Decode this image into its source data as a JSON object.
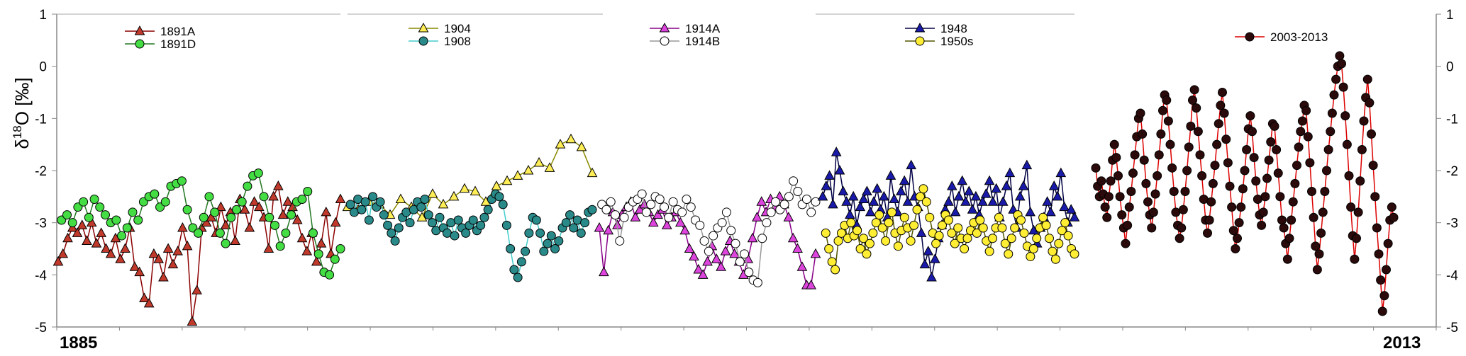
{
  "chart_data": {
    "type": "line",
    "ylabel": {
      "delta": "δ",
      "sup": "18",
      "rest": "O [‰]"
    },
    "ylim": [
      -5,
      1
    ],
    "yticks": [
      "1",
      "0",
      "-1",
      "-2",
      "-3",
      "-4",
      "-5"
    ],
    "xlabel_left": "1885",
    "xlabel_right": "2013",
    "grid": false,
    "series": [
      {
        "name": "1891A",
        "marker": "triangle",
        "fill": "#c0392b",
        "line": "#8b0000",
        "segment": 0,
        "values": [
          -3.75,
          -3.6,
          -3.3,
          -3.1,
          -3.2,
          -3.05,
          -3.35,
          -3.0,
          -3.4,
          -3.2,
          -3.5,
          -3.6,
          -3.3,
          -3.7,
          -3.5,
          -3.1,
          -3.85,
          -3.95,
          -4.45,
          -4.55,
          -3.6,
          -3.7,
          -4.05,
          -3.5,
          -3.8,
          -3.55,
          -3.1,
          -3.45,
          -4.9,
          -4.3,
          -3.1,
          -3.0,
          -2.9,
          -3.2,
          -2.7,
          -3.05,
          -2.8,
          -3.35,
          -2.55,
          -2.75,
          -3.1,
          -2.6,
          -2.7,
          -2.9,
          -3.5,
          -2.5,
          -2.3,
          -2.85,
          -2.6,
          -2.7,
          -2.95,
          -3.3,
          -3.55,
          -3.2,
          -3.75,
          -3.4,
          -2.8,
          -3.6,
          -3.0,
          -2.55
        ]
      },
      {
        "name": "1891D",
        "marker": "circle",
        "fill": "#44dd44",
        "line": "#227722",
        "segment": 0,
        "values": [
          -2.95,
          -2.85,
          -3.0,
          -2.7,
          -2.6,
          -2.9,
          -2.55,
          -2.7,
          -2.85,
          -3.0,
          -2.95,
          -3.25,
          -3.1,
          -2.8,
          -2.95,
          -2.6,
          -2.5,
          -2.45,
          -2.7,
          -2.6,
          -2.3,
          -2.25,
          -2.2,
          -2.75,
          -3.1,
          -3.2,
          -2.9,
          -2.5,
          -2.8,
          -3.2,
          -3.4,
          -2.9,
          -2.75,
          -2.6,
          -2.3,
          -2.1,
          -2.05,
          -2.5,
          -2.9,
          -3.05,
          -3.45,
          -3.2,
          -2.85,
          -2.6,
          -2.55,
          -2.4,
          -3.2,
          -3.6,
          -3.95,
          -4.0,
          -3.7,
          -3.5
        ]
      },
      {
        "name": "1904",
        "marker": "triangle",
        "fill": "#ffee55",
        "line": "#888800",
        "segment": 1,
        "values": [
          -2.7,
          -2.75,
          -2.6,
          -2.65,
          -2.85,
          -2.55,
          -2.7,
          -2.9,
          -2.45,
          -2.65,
          -2.5,
          -2.35,
          -2.4,
          -2.6,
          -2.3,
          -2.2,
          -2.1,
          -2.0,
          -1.85,
          -1.95,
          -1.5,
          -1.4,
          -1.55,
          -2.05
        ]
      },
      {
        "name": "1908",
        "marker": "circle",
        "fill": "#2a8a8a",
        "line": "#44cccc",
        "segment": 1,
        "values": [
          -2.65,
          -2.8,
          -2.55,
          -2.75,
          -2.6,
          -2.95,
          -2.5,
          -2.7,
          -2.6,
          -2.85,
          -3.05,
          -3.2,
          -3.35,
          -3.1,
          -2.9,
          -2.8,
          -3.0,
          -2.75,
          -2.6,
          -2.7,
          -2.55,
          -2.85,
          -3.0,
          -3.15,
          -2.9,
          -3.1,
          -3.2,
          -3.0,
          -3.25,
          -2.95,
          -3.1,
          -3.2,
          -3.05,
          -2.95,
          -3.15,
          -3.05,
          -2.9,
          -2.75,
          -2.55,
          -2.45,
          -2.5,
          -2.65,
          -3.05,
          -3.5,
          -3.9,
          -4.05,
          -3.75,
          -3.55,
          -3.2,
          -2.9,
          -2.95,
          -3.2,
          -3.55,
          -3.4,
          -3.25,
          -3.5,
          -3.35,
          -3.1,
          -3.0,
          -2.85,
          -3.1,
          -2.95,
          -3.2,
          -3.0,
          -2.8,
          -2.75
        ]
      },
      {
        "name": "1914A",
        "marker": "triangle",
        "fill": "#dd44dd",
        "line": "#880088",
        "segment": 2,
        "values": [
          -3.1,
          -3.95,
          -3.15,
          -2.8,
          -3.05,
          -2.85,
          -2.7,
          -2.6,
          -2.9,
          -2.75,
          -2.65,
          -2.8,
          -3.0,
          -2.85,
          -2.75,
          -3.05,
          -2.9,
          -2.8,
          -3.0,
          -3.15,
          -3.5,
          -3.65,
          -3.9,
          -4.0,
          -3.75,
          -3.45,
          -3.7,
          -3.85,
          -3.55,
          -3.35,
          -3.6,
          -3.75,
          -4.0,
          -3.7,
          -3.3,
          -2.9,
          -2.6,
          -2.8,
          -2.55,
          -2.7,
          -2.5,
          -2.65,
          -2.9,
          -3.3,
          -3.5,
          -3.85,
          -4.2,
          -4.2,
          -3.6
        ]
      },
      {
        "name": "1914B",
        "marker": "circle",
        "fill": "#ffffff",
        "line": "#999999",
        "segment": 2,
        "values": [
          -2.65,
          -2.75,
          -2.6,
          -2.85,
          -3.35,
          -2.9,
          -2.7,
          -2.6,
          -2.55,
          -2.45,
          -2.8,
          -2.65,
          -2.5,
          -2.55,
          -2.7,
          -2.9,
          -2.6,
          -2.75,
          -2.8,
          -2.55,
          -2.7,
          -2.95,
          -3.05,
          -3.35,
          -3.55,
          -3.25,
          -3.1,
          -3.0,
          -2.8,
          -3.15,
          -3.4,
          -3.75,
          -3.6,
          -3.95,
          -4.1,
          -4.15,
          -3.3,
          -3.0,
          -2.8,
          -2.6,
          -2.75,
          -2.65,
          -2.5,
          -2.2,
          -2.4,
          -2.65,
          -2.55,
          -2.8,
          -2.6
        ]
      },
      {
        "name": "1948",
        "marker": "triangle",
        "fill": "#1a1aaa",
        "line": "#000044",
        "segment": 3,
        "values": [
          -2.5,
          -2.3,
          -2.1,
          -2.65,
          -1.65,
          -2.0,
          -2.4,
          -2.6,
          -2.85,
          -2.5,
          -3.05,
          -2.7,
          -2.55,
          -2.4,
          -2.8,
          -2.6,
          -2.35,
          -2.75,
          -2.5,
          -2.9,
          -2.1,
          -2.55,
          -2.8,
          -2.4,
          -2.2,
          -2.6,
          -1.9,
          -2.5,
          -2.7,
          -3.2,
          -3.8,
          -3.55,
          -4.05,
          -3.7,
          -3.3,
          -3.05,
          -2.75,
          -2.6,
          -2.3,
          -2.8,
          -2.5,
          -2.2,
          -2.6,
          -2.4,
          -2.75,
          -2.5,
          -2.85,
          -2.6,
          -2.45,
          -2.2,
          -2.6,
          -2.35,
          -2.9,
          -2.6,
          -2.3,
          -2.05,
          -2.75,
          -3.1,
          -2.5,
          -2.3,
          -1.9,
          -2.8,
          -3.15,
          -3.4,
          -3.1,
          -2.9,
          -2.6,
          -2.8,
          -2.3,
          -2.5,
          -2.05,
          -2.7,
          -3.0,
          -2.75,
          -2.9
        ]
      },
      {
        "name": "1950s",
        "marker": "circle",
        "fill": "#ffee33",
        "line": "#555500",
        "segment": 3,
        "values": [
          -3.2,
          -3.5,
          -3.75,
          -3.9,
          -3.35,
          -3.2,
          -3.05,
          -3.3,
          -3.0,
          -3.25,
          -3.15,
          -3.5,
          -3.3,
          -3.6,
          -3.4,
          -3.2,
          -3.0,
          -2.85,
          -3.1,
          -3.35,
          -3.0,
          -2.8,
          -3.2,
          -3.45,
          -3.15,
          -2.9,
          -3.1,
          -3.35,
          -3.05,
          -2.75,
          -2.5,
          -2.35,
          -2.6,
          -2.9,
          -3.2,
          -3.4,
          -3.25,
          -3.05,
          -2.85,
          -2.95,
          -3.2,
          -3.4,
          -3.1,
          -3.3,
          -3.5,
          -3.3,
          -3.15,
          -3.0,
          -3.2,
          -2.95,
          -3.1,
          -3.35,
          -3.55,
          -3.3,
          -3.1,
          -2.9,
          -3.1,
          -3.4,
          -3.6,
          -3.3,
          -3.1,
          -2.85,
          -2.95,
          -3.2,
          -3.45,
          -3.65,
          -3.5,
          -3.3,
          -3.1,
          -2.9,
          -3.05,
          -3.3,
          -3.55,
          -3.7,
          -3.4,
          -3.15,
          -3.0,
          -3.25,
          -3.5,
          -3.6
        ]
      },
      {
        "name": "2003-2013",
        "marker": "circle",
        "fill": "#2a0a0a",
        "line": "#dd0000",
        "segment": 4,
        "values": [
          -1.95,
          -2.3,
          -2.5,
          -2.2,
          -2.45,
          -2.7,
          -2.9,
          -2.5,
          -2.2,
          -1.8,
          -1.5,
          -1.75,
          -2.1,
          -2.5,
          -2.85,
          -3.1,
          -3.4,
          -3.05,
          -2.7,
          -2.4,
          -2.05,
          -1.7,
          -1.35,
          -1.0,
          -0.9,
          -1.3,
          -1.8,
          -2.25,
          -2.6,
          -2.85,
          -3.1,
          -2.8,
          -2.45,
          -2.1,
          -1.7,
          -1.3,
          -0.85,
          -0.55,
          -0.65,
          -1.05,
          -1.5,
          -1.95,
          -2.4,
          -2.8,
          -3.05,
          -3.3,
          -3.1,
          -2.75,
          -2.4,
          -2.0,
          -1.55,
          -1.15,
          -0.65,
          -0.45,
          -0.8,
          -1.25,
          -1.7,
          -2.1,
          -2.55,
          -2.95,
          -3.2,
          -2.95,
          -2.6,
          -2.25,
          -1.9,
          -1.5,
          -1.1,
          -0.75,
          -0.5,
          -0.9,
          -1.4,
          -1.85,
          -2.3,
          -2.7,
          -3.15,
          -3.5,
          -3.3,
          -3.0,
          -2.7,
          -2.35,
          -2.0,
          -1.6,
          -1.2,
          -0.95,
          -1.25,
          -1.75,
          -2.2,
          -2.55,
          -2.85,
          -3.05,
          -2.8,
          -2.5,
          -2.15,
          -1.8,
          -1.45,
          -1.1,
          -1.15,
          -1.6,
          -2.05,
          -2.5,
          -2.95,
          -3.1,
          -3.4,
          -3.7,
          -3.3,
          -2.95,
          -2.6,
          -2.25,
          -1.9,
          -1.55,
          -1.25,
          -1.05,
          -0.75,
          -0.85,
          -1.35,
          -1.85,
          -2.4,
          -2.9,
          -3.45,
          -3.9,
          -3.6,
          -3.2,
          -2.8,
          -2.4,
          -2.0,
          -1.6,
          -1.25,
          -0.9,
          -0.55,
          -0.25,
          0.0,
          0.2,
          0.05,
          -0.4,
          -0.95,
          -1.5,
          -2.1,
          -2.7,
          -3.25,
          -3.7,
          -3.3,
          -2.8,
          -2.2,
          -1.6,
          -1.05,
          -0.6,
          -0.25,
          -0.7,
          -1.3,
          -1.9,
          -2.5,
          -3.1,
          -3.6,
          -4.1,
          -4.7,
          -4.4,
          -3.9,
          -3.4,
          -2.95,
          -2.7,
          -2.9
        ]
      }
    ]
  }
}
